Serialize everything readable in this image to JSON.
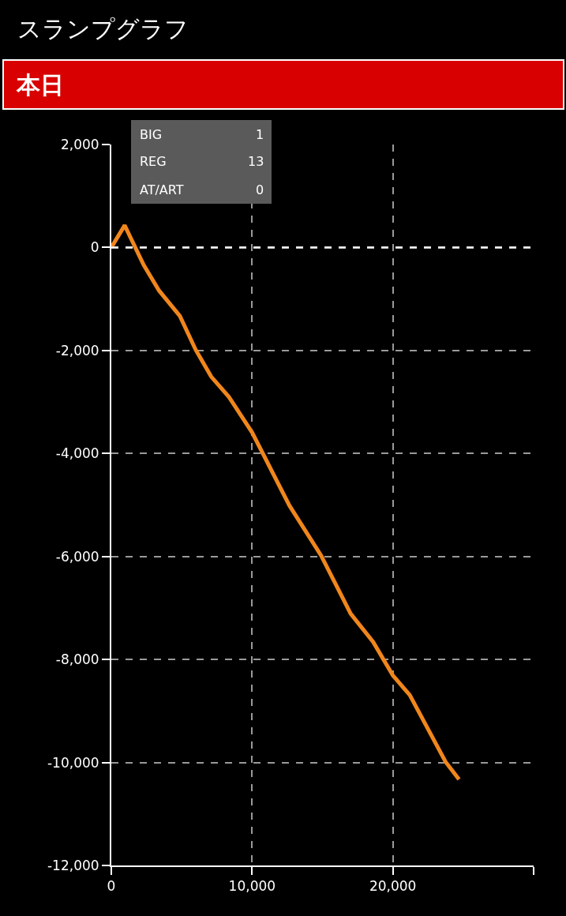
{
  "chart_data": {
    "type": "line",
    "title": "スランプグラフ",
    "subtitle": "本日",
    "annotations": [
      "BIG",
      "1",
      "REG",
      "13",
      "AT/ART",
      "0"
    ],
    "x": [
      0,
      950,
      2300,
      3400,
      4870,
      6000,
      7100,
      8350,
      10000,
      12650,
      14900,
      17000,
      18600,
      20000,
      21200,
      23750,
      24700
    ],
    "series": [
      {
        "color": "#f0861c",
        "values": [
          0,
          430,
          -340,
          -840,
          -1330,
          -1990,
          -2510,
          -2900,
          -3590,
          -5010,
          -5980,
          -7110,
          -7660,
          -8310,
          -8690,
          -9990,
          -10330
        ]
      }
    ],
    "xlim": [
      0,
      30000
    ],
    "xticks": [
      {
        "value": 0,
        "label": "0"
      },
      {
        "value": 10000,
        "label": "10,000"
      },
      {
        "value": 20000,
        "label": "20,000"
      },
      {
        "value": 30000,
        "label": null
      }
    ],
    "ylim": [
      -12000,
      2000
    ],
    "yticks": [
      {
        "value": -12000,
        "label": "-12,000"
      },
      {
        "value": -10000,
        "label": "-10,000"
      },
      {
        "value": -8000,
        "label": "-8,000"
      },
      {
        "value": -6000,
        "label": "-6,000"
      },
      {
        "value": -4000,
        "label": "-4,000"
      },
      {
        "value": -2000,
        "label": "-2,000"
      },
      {
        "value": 0,
        "label": "0"
      },
      {
        "value": 2000,
        "label": "2,000"
      }
    ],
    "ref_lines": [
      {
        "axis": "y",
        "value": 0,
        "color": "#ffffff",
        "line_style": "dashed"
      }
    ],
    "grid": true,
    "marker": "none",
    "line_style": "solid"
  }
}
